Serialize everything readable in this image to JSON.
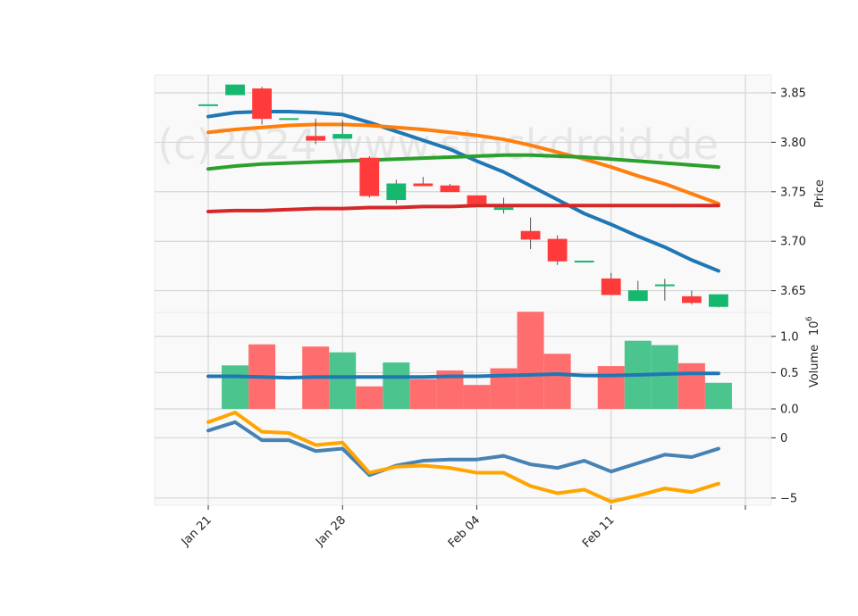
{
  "watermark": "(c)2024 www.stockdroid.de",
  "colors": {
    "up": "#16b86f",
    "down": "#ff3a3a",
    "ma_blue": "#1f77b4",
    "ma_orange": "#ff7f0e",
    "ma_green": "#2ca02c",
    "ma_red": "#d62728",
    "vol_up": "#4cc48e",
    "vol_down": "#ff6e6e",
    "vol_ma": "#1f77b4",
    "ind_a": "#4682b4",
    "ind_b": "#ffa500",
    "panel_bg": "#f9f9f9",
    "grid": "#d0d0d0"
  },
  "chart_data": [
    {
      "type": "candlestick",
      "panel": "price",
      "ylabel": "Price",
      "ylim": [
        3.628,
        3.868
      ],
      "yticks": [
        3.65,
        3.7,
        3.75,
        3.8,
        3.85
      ],
      "ytick_labels": [
        "3.65",
        "3.70",
        "3.75",
        "3.80",
        "3.85"
      ],
      "x_index": [
        0,
        1,
        2,
        3,
        4,
        5,
        6,
        7,
        8,
        9,
        10,
        11,
        12,
        13,
        14,
        15,
        16,
        17,
        18,
        19
      ],
      "candles": [
        {
          "o": 3.838,
          "h": 3.838,
          "l": 3.838,
          "c": 3.838
        },
        {
          "o": 3.848,
          "h": 3.858,
          "l": 3.848,
          "c": 3.858
        },
        {
          "o": 3.854,
          "h": 3.856,
          "l": 3.818,
          "c": 3.824
        },
        {
          "o": 3.824,
          "h": 3.824,
          "l": 3.824,
          "c": 3.824
        },
        {
          "o": 3.806,
          "h": 3.824,
          "l": 3.798,
          "c": 3.802
        },
        {
          "o": 3.804,
          "h": 3.822,
          "l": 3.804,
          "c": 3.808
        },
        {
          "o": 3.784,
          "h": 3.786,
          "l": 3.744,
          "c": 3.746
        },
        {
          "o": 3.742,
          "h": 3.762,
          "l": 3.738,
          "c": 3.758
        },
        {
          "o": 3.758,
          "h": 3.765,
          "l": 3.756,
          "c": 3.756
        },
        {
          "o": 3.756,
          "h": 3.758,
          "l": 3.75,
          "c": 3.75
        },
        {
          "o": 3.746,
          "h": 3.746,
          "l": 3.736,
          "c": 3.738
        },
        {
          "o": 3.732,
          "h": 3.744,
          "l": 3.728,
          "c": 3.734
        },
        {
          "o": 3.71,
          "h": 3.724,
          "l": 3.692,
          "c": 3.702
        },
        {
          "o": 3.702,
          "h": 3.706,
          "l": 3.676,
          "c": 3.68
        },
        {
          "o": 3.68,
          "h": 3.68,
          "l": 3.68,
          "c": 3.68
        },
        {
          "o": 3.662,
          "h": 3.668,
          "l": 3.646,
          "c": 3.646
        },
        {
          "o": 3.64,
          "h": 3.66,
          "l": 3.64,
          "c": 3.65
        },
        {
          "o": 3.656,
          "h": 3.662,
          "l": 3.64,
          "c": 3.656
        },
        {
          "o": 3.644,
          "h": 3.65,
          "l": 3.636,
          "c": 3.638
        },
        {
          "o": 3.634,
          "h": 3.646,
          "l": 3.633,
          "c": 3.646
        }
      ],
      "moving_averages": [
        {
          "color_key": "ma_blue",
          "values": [
            3.826,
            3.83,
            3.831,
            3.831,
            3.83,
            3.828,
            3.82,
            3.811,
            3.802,
            3.793,
            3.781,
            3.77,
            3.756,
            3.742,
            3.728,
            3.717,
            3.705,
            3.694,
            3.681,
            3.67
          ]
        },
        {
          "color_key": "ma_orange",
          "values": [
            3.81,
            3.813,
            3.815,
            3.817,
            3.818,
            3.818,
            3.817,
            3.815,
            3.813,
            3.81,
            3.807,
            3.803,
            3.797,
            3.79,
            3.783,
            3.775,
            3.766,
            3.758,
            3.748,
            3.738
          ]
        },
        {
          "color_key": "ma_green",
          "values": [
            3.773,
            3.776,
            3.778,
            3.779,
            3.78,
            3.781,
            3.782,
            3.783,
            3.784,
            3.785,
            3.786,
            3.787,
            3.787,
            3.786,
            3.785,
            3.783,
            3.781,
            3.779,
            3.777,
            3.775
          ]
        },
        {
          "color_key": "ma_red",
          "values": [
            3.73,
            3.731,
            3.731,
            3.732,
            3.733,
            3.733,
            3.734,
            3.734,
            3.735,
            3.735,
            3.736,
            3.736,
            3.736,
            3.736,
            3.736,
            3.736,
            3.736,
            3.736,
            3.736,
            3.736
          ]
        }
      ]
    },
    {
      "type": "bar",
      "panel": "volume",
      "ylabel": "Volume",
      "ylabel_exponent": "6",
      "ylim": [
        0,
        1.33
      ],
      "yticks": [
        0.0,
        0.5,
        1.0
      ],
      "ytick_labels": [
        "0.0",
        "0.5",
        "1.0"
      ],
      "values": [
        0,
        0.6,
        0.89,
        0,
        0.86,
        0.78,
        0.31,
        0.64,
        0.41,
        0.53,
        0.33,
        0.56,
        1.34,
        0.76,
        0,
        0.59,
        0.94,
        0.88,
        0.63,
        0.36
      ],
      "direction": [
        "down",
        "up",
        "down",
        "down",
        "down",
        "up",
        "down",
        "up",
        "down",
        "down",
        "down",
        "down",
        "down",
        "down",
        "down",
        "down",
        "up",
        "up",
        "down",
        "up"
      ],
      "ma_values": [
        0.45,
        0.45,
        0.44,
        0.43,
        0.44,
        0.44,
        0.44,
        0.44,
        0.44,
        0.45,
        0.45,
        0.46,
        0.47,
        0.48,
        0.46,
        0.46,
        0.47,
        0.48,
        0.49,
        0.49
      ]
    },
    {
      "type": "line",
      "panel": "indicator",
      "ylim": [
        -5.6,
        2.4
      ],
      "yticks": [
        -5,
        0
      ],
      "ytick_labels": [
        "−5",
        "0"
      ],
      "series": [
        {
          "color_key": "ind_a",
          "values": [
            0.6,
            1.3,
            -0.2,
            -0.2,
            -1.1,
            -0.9,
            -3.1,
            -2.3,
            -1.9,
            -1.8,
            -1.8,
            -1.5,
            -2.2,
            -2.5,
            -1.9,
            -2.8,
            -2.1,
            -1.4,
            -1.6,
            -0.9
          ]
        },
        {
          "color_key": "ind_b",
          "values": [
            1.3,
            2.1,
            0.5,
            0.4,
            -0.6,
            -0.4,
            -2.9,
            -2.4,
            -2.3,
            -2.5,
            -2.9,
            -2.9,
            -4.0,
            -4.6,
            -4.3,
            -5.3,
            -4.8,
            -4.2,
            -4.5,
            -3.8
          ]
        }
      ]
    }
  ],
  "x_axis": {
    "ticks": [
      {
        "index": 0,
        "label": "Jan 21"
      },
      {
        "index": 5,
        "label": "Jan 28"
      },
      {
        "index": 10,
        "label": "Feb 04"
      },
      {
        "index": 15,
        "label": "Feb 11"
      },
      {
        "index": 20,
        "label": ""
      }
    ]
  }
}
